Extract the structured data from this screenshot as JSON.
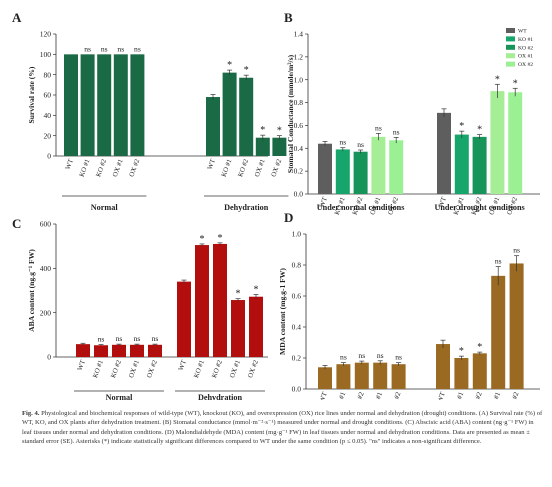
{
  "caption": {
    "label": "Fig. 4.",
    "text": "Physiological and biochemical responses of wild-type (WT), knockout (KO), and overexpression (OX) rice lines under normal and dehydration (drought) conditions. (A) Survival rate (%) of WT, KO, and OX plants after dehydration treatment. (B) Stomatal conductance (mmol·m⁻²·s⁻¹) measured under normal and drought conditions. (C) Abscisic acid (ABA) content (ng·g⁻¹ FW) in leaf tissues under normal and dehydration conditions. (D) Malondialdehyde (MDA) content (mg·g⁻¹ FW) in leaf tissues under normal and dehydration conditions. Data are presented as mean ± standard error (SE). Asterisks (*) indicate statistically significant differences compared to WT under the same condition (p ≤ 0.05). \"ns\" indicates a non-significant difference."
  },
  "chart_data": [
    {
      "panel": "A",
      "type": "bar",
      "ylabel": "Survival rate (%)",
      "ylim": [
        0,
        120
      ],
      "yticks": [
        0,
        20,
        40,
        60,
        80,
        100,
        120
      ],
      "color": "#1a6b45",
      "groups": [
        {
          "name": "Normal",
          "categories": [
            "WT",
            "KO #1",
            "KO #2",
            "OX #1",
            "OX #2"
          ],
          "values": [
            100,
            100,
            100,
            100,
            100
          ],
          "errors": [
            0,
            0,
            0,
            0,
            0
          ],
          "marks": [
            "",
            "ns",
            "ns",
            "ns",
            "ns"
          ]
        },
        {
          "name": "Dehydration",
          "categories": [
            "WT",
            "KO #1",
            "KO #2",
            "OX #1",
            "OX #2"
          ],
          "values": [
            58,
            82,
            77,
            18,
            18
          ],
          "errors": [
            2.5,
            2.5,
            2.5,
            2.5,
            2
          ],
          "marks": [
            "",
            "*",
            "*",
            "*",
            "*"
          ]
        }
      ]
    },
    {
      "panel": "B",
      "type": "bar",
      "ylabel": "Stomatal Conductance (mmole/m²/s)",
      "ylim": [
        0,
        1.4
      ],
      "yticks": [
        0,
        0.2,
        0.4,
        0.6,
        0.8,
        1,
        1.2,
        1.4
      ],
      "legend": {
        "placement": "top-right",
        "entries": [
          {
            "label": "WT",
            "color": "#5e5e5e"
          },
          {
            "label": "KO #1",
            "color": "#16a56a"
          },
          {
            "label": "KO #2",
            "color": "#17945a"
          },
          {
            "label": "OX #1",
            "color": "#a6ee96"
          },
          {
            "label": "OX #2",
            "color": "#9cf094"
          }
        ]
      },
      "groups": [
        {
          "name": "Under normal conditions",
          "categories": [
            "WT",
            "KO #1",
            "KO #2",
            "OX #1",
            "OX #2"
          ],
          "values": [
            0.44,
            0.39,
            0.37,
            0.5,
            0.47
          ],
          "errors": [
            0.02,
            0.015,
            0.015,
            0.03,
            0.025
          ],
          "marks": [
            "",
            "ns",
            "ns",
            "ns",
            "ns"
          ]
        },
        {
          "name": "Under drought conditions",
          "categories": [
            "WT",
            "KO #1",
            "KO #2",
            "OX #1",
            "OX #2"
          ],
          "values": [
            0.71,
            0.52,
            0.5,
            0.9,
            0.89
          ],
          "errors": [
            0.035,
            0.03,
            0.02,
            0.06,
            0.035
          ],
          "marks": [
            "",
            "*",
            "*",
            "*",
            "*"
          ]
        }
      ]
    },
    {
      "panel": "C",
      "type": "bar",
      "ylabel": "ABA content (ng.g⁻¹ FW)",
      "ylim": [
        0,
        600
      ],
      "yticks": [
        0,
        200,
        400,
        600
      ],
      "color": "#b30e0e",
      "groups": [
        {
          "name": "Normal",
          "categories": [
            "WT",
            "KO #1",
            "KO #2",
            "OX #1",
            "OX #2"
          ],
          "values": [
            58,
            53,
            55,
            55,
            55
          ],
          "errors": [
            4,
            3,
            3,
            3,
            3
          ],
          "marks": [
            "",
            "ns",
            "ns",
            "ns",
            "ns"
          ]
        },
        {
          "name": "Dehydration",
          "categories": [
            "WT",
            "KO #1",
            "KO #2",
            "OX #1",
            "OX #2"
          ],
          "values": [
            340,
            505,
            510,
            257,
            272
          ],
          "errors": [
            7,
            5,
            5,
            6,
            10
          ],
          "marks": [
            "",
            "*",
            "*",
            "*",
            "*"
          ]
        }
      ]
    },
    {
      "panel": "D",
      "type": "bar",
      "ylabel": "MDA content (mg.g-1 FW)",
      "ylim": [
        0,
        1.0
      ],
      "yticks": [
        0,
        0.2,
        0.4,
        0.6,
        0.8,
        1.0
      ],
      "color": "#9a6a22",
      "groups": [
        {
          "name": "",
          "categories": [
            "WT",
            "KO #1",
            "KO #2",
            "OX #1",
            "OX #2"
          ],
          "values": [
            0.14,
            0.16,
            0.17,
            0.17,
            0.16
          ],
          "errors": [
            0.012,
            0.01,
            0.01,
            0.012,
            0.01
          ],
          "marks": [
            "",
            "ns",
            "ns",
            "ns",
            "ns"
          ]
        },
        {
          "name": "",
          "categories": [
            "WT",
            "KO #1",
            "KO #2",
            "OX #1",
            "OX #2"
          ],
          "values": [
            0.29,
            0.2,
            0.23,
            0.73,
            0.81
          ],
          "errors": [
            0.025,
            0.012,
            0.008,
            0.06,
            0.05
          ],
          "marks": [
            "",
            "*",
            "*",
            "ns",
            "ns"
          ]
        }
      ]
    }
  ]
}
